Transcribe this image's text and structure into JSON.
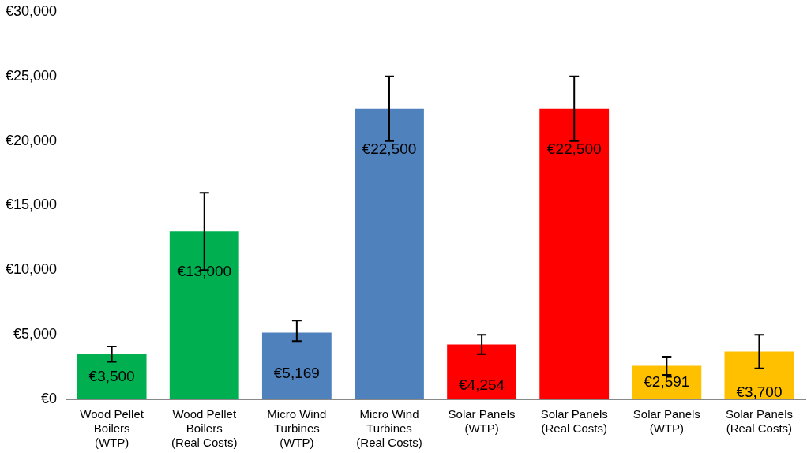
{
  "chart_data": {
    "type": "bar",
    "categories": [
      "Wood Pellet Boilers (WTP)",
      "Wood Pellet Boilers (Real Costs)",
      "Micro Wind Turbines (WTP)",
      "Micro Wind Turbines (Real Costs)",
      "Solar Panels (WTP)",
      "Solar Panels (Real Costs)",
      "Solar Panels (WTP)",
      "Solar Panels (Real Costs)"
    ],
    "values": [
      3500,
      13000,
      5169,
      22500,
      4254,
      22500,
      2591,
      3700
    ],
    "colors": [
      "#00b050",
      "#00b050",
      "#4f81bd",
      "#4f81bd",
      "#ff0000",
      "#ff0000",
      "#ffc000",
      "#ffc000"
    ],
    "errors": [
      [
        2900,
        4100
      ],
      [
        10000,
        16000
      ],
      [
        4500,
        6100
      ],
      [
        20000,
        25000
      ],
      [
        3500,
        5000
      ],
      [
        20000,
        25000
      ],
      [
        1900,
        3300
      ],
      [
        2400,
        5000
      ]
    ],
    "value_labels": [
      "€3,500",
      "€13,000",
      "€5,169",
      "€22,500",
      "€4,254",
      "€22,500",
      "€2,591",
      "€3,700"
    ],
    "ylim": [
      0,
      30000
    ],
    "yticks": [
      {
        "value": 0,
        "label": "€0"
      },
      {
        "value": 5000,
        "label": "€5,000"
      },
      {
        "value": 10000,
        "label": "€10,000"
      },
      {
        "value": 15000,
        "label": "€15,000"
      },
      {
        "value": 20000,
        "label": "€20,000"
      },
      {
        "value": 25000,
        "label": "€25,000"
      },
      {
        "value": 30000,
        "label": "€30,000"
      }
    ],
    "grid": false,
    "legend": false
  }
}
